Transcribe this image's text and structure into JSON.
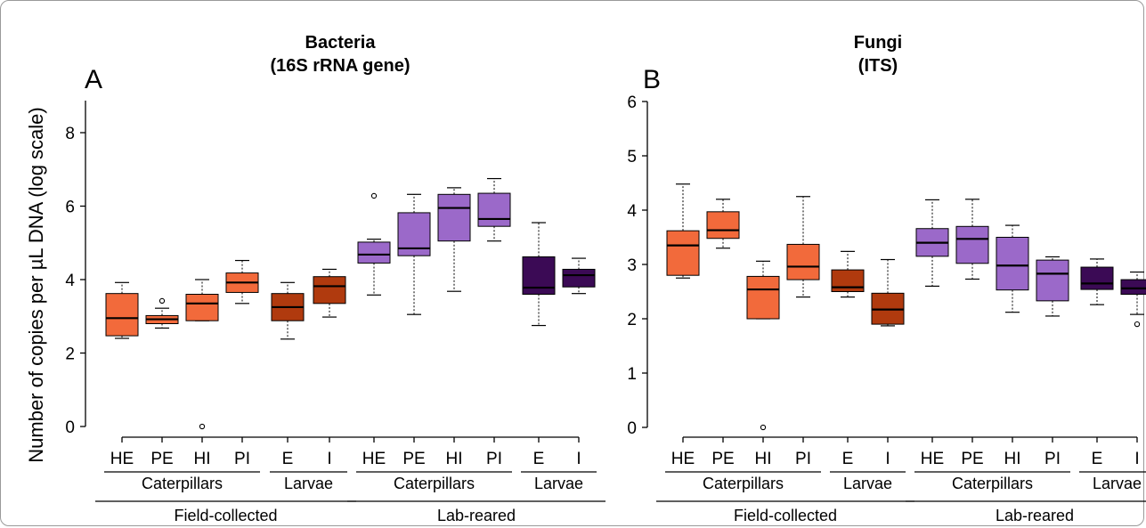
{
  "chart_data": [
    {
      "type": "boxplot",
      "panel": "A",
      "title": "Bacteria\n(16S rRNA gene)",
      "ylabel": "Number of copies per µL DNA (log scale)",
      "yticks": [
        0,
        2,
        4,
        6,
        8
      ],
      "ylim": [
        -0.3,
        9
      ],
      "categories": [
        "HE",
        "PE",
        "HI",
        "PI",
        "E",
        "I",
        "HE",
        "PE",
        "HI",
        "PI",
        "E",
        "I"
      ],
      "subgroups": [
        {
          "label": "Caterpillars",
          "from": 0,
          "to": 3
        },
        {
          "label": "Larvae",
          "from": 4,
          "to": 5
        },
        {
          "label": "Caterpillars",
          "from": 6,
          "to": 9
        },
        {
          "label": "Larvae",
          "from": 10,
          "to": 11
        }
      ],
      "groups": [
        {
          "label": "Field-collected",
          "from": 0,
          "to": 5
        },
        {
          "label": "Lab-reared",
          "from": 6,
          "to": 11
        }
      ],
      "boxes": [
        {
          "min": 2.4,
          "q1": 2.47,
          "median": 2.95,
          "q3": 3.62,
          "max": 3.92,
          "outliers": [],
          "color": "#f26a3b"
        },
        {
          "min": 2.68,
          "q1": 2.8,
          "median": 2.92,
          "q3": 3.02,
          "max": 3.22,
          "outliers": [
            3.42
          ],
          "color": "#f26a3b"
        },
        {
          "min": 2.88,
          "q1": 2.88,
          "median": 3.35,
          "q3": 3.6,
          "max": 4.0,
          "outliers": [
            0.0
          ],
          "color": "#f26a3b"
        },
        {
          "min": 3.35,
          "q1": 3.65,
          "median": 3.92,
          "q3": 4.18,
          "max": 4.52,
          "outliers": [],
          "color": "#f26a3b"
        },
        {
          "min": 2.38,
          "q1": 2.88,
          "median": 3.25,
          "q3": 3.62,
          "max": 3.92,
          "outliers": [],
          "color": "#b03a0e"
        },
        {
          "min": 2.98,
          "q1": 3.35,
          "median": 3.82,
          "q3": 4.08,
          "max": 4.28,
          "outliers": [],
          "color": "#b03a0e"
        },
        {
          "min": 3.58,
          "q1": 4.45,
          "median": 4.68,
          "q3": 5.02,
          "max": 5.1,
          "outliers": [
            6.28
          ],
          "color": "#9b69c9"
        },
        {
          "min": 3.05,
          "q1": 4.65,
          "median": 4.85,
          "q3": 5.82,
          "max": 6.32,
          "outliers": [],
          "color": "#9b69c9"
        },
        {
          "min": 3.68,
          "q1": 5.05,
          "median": 5.95,
          "q3": 6.32,
          "max": 6.5,
          "outliers": [],
          "color": "#9b69c9"
        },
        {
          "min": 5.05,
          "q1": 5.45,
          "median": 5.65,
          "q3": 6.35,
          "max": 6.75,
          "outliers": [],
          "color": "#9b69c9"
        },
        {
          "min": 2.75,
          "q1": 3.6,
          "median": 3.78,
          "q3": 4.62,
          "max": 5.55,
          "outliers": [],
          "color": "#3b0a55"
        },
        {
          "min": 3.62,
          "q1": 3.8,
          "median": 4.12,
          "q3": 4.28,
          "max": 4.58,
          "outliers": [],
          "color": "#3b0a55"
        }
      ]
    },
    {
      "type": "boxplot",
      "panel": "B",
      "title": "Fungi\n(ITS)",
      "ylabel": "",
      "yticks": [
        0,
        1,
        2,
        3,
        4,
        5,
        6
      ],
      "ylim": [
        -0.15,
        6.1
      ],
      "categories": [
        "HE",
        "PE",
        "HI",
        "PI",
        "E",
        "I",
        "HE",
        "PE",
        "HI",
        "PI",
        "E",
        "I"
      ],
      "subgroups": [
        {
          "label": "Caterpillars",
          "from": 0,
          "to": 3
        },
        {
          "label": "Larvae",
          "from": 4,
          "to": 5
        },
        {
          "label": "Caterpillars",
          "from": 6,
          "to": 9
        },
        {
          "label": "Larvae",
          "from": 10,
          "to": 11
        }
      ],
      "groups": [
        {
          "label": "Field-collected",
          "from": 0,
          "to": 5
        },
        {
          "label": "Lab-reared",
          "from": 6,
          "to": 11
        }
      ],
      "boxes": [
        {
          "min": 2.75,
          "q1": 2.8,
          "median": 3.35,
          "q3": 3.62,
          "max": 4.48,
          "outliers": [],
          "color": "#f26a3b"
        },
        {
          "min": 3.3,
          "q1": 3.48,
          "median": 3.63,
          "q3": 3.97,
          "max": 4.2,
          "outliers": [],
          "color": "#f26a3b"
        },
        {
          "min": 2.0,
          "q1": 2.0,
          "median": 2.54,
          "q3": 2.78,
          "max": 3.06,
          "outliers": [
            0.0
          ],
          "color": "#f26a3b"
        },
        {
          "min": 2.4,
          "q1": 2.72,
          "median": 2.96,
          "q3": 3.37,
          "max": 4.25,
          "outliers": [],
          "color": "#f26a3b"
        },
        {
          "min": 2.4,
          "q1": 2.5,
          "median": 2.58,
          "q3": 2.9,
          "max": 3.24,
          "outliers": [],
          "color": "#b03a0e"
        },
        {
          "min": 1.87,
          "q1": 1.9,
          "median": 2.17,
          "q3": 2.47,
          "max": 3.09,
          "outliers": [],
          "color": "#b03a0e"
        },
        {
          "min": 2.6,
          "q1": 3.15,
          "median": 3.4,
          "q3": 3.66,
          "max": 4.19,
          "outliers": [],
          "color": "#9b69c9"
        },
        {
          "min": 2.73,
          "q1": 3.02,
          "median": 3.47,
          "q3": 3.7,
          "max": 4.2,
          "outliers": [],
          "color": "#9b69c9"
        },
        {
          "min": 2.12,
          "q1": 2.53,
          "median": 2.98,
          "q3": 3.5,
          "max": 3.72,
          "outliers": [],
          "color": "#9b69c9"
        },
        {
          "min": 2.05,
          "q1": 2.33,
          "median": 2.83,
          "q3": 3.08,
          "max": 3.14,
          "outliers": [],
          "color": "#9b69c9"
        },
        {
          "min": 2.26,
          "q1": 2.54,
          "median": 2.65,
          "q3": 2.95,
          "max": 3.1,
          "outliers": [],
          "color": "#3b0a55"
        },
        {
          "min": 2.08,
          "q1": 2.45,
          "median": 2.56,
          "q3": 2.72,
          "max": 2.86,
          "outliers": [
            1.9
          ],
          "color": "#3b0a55"
        }
      ]
    }
  ]
}
